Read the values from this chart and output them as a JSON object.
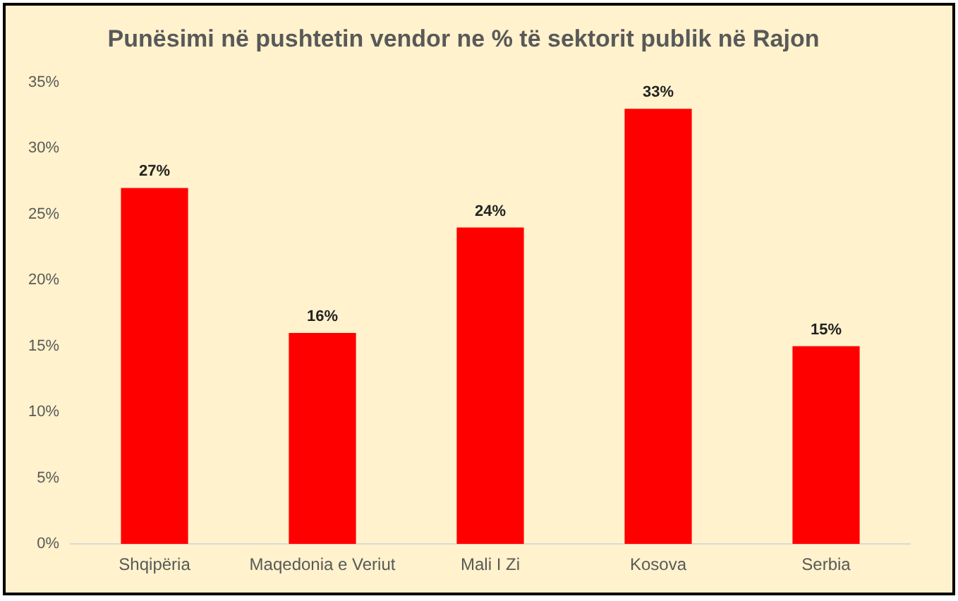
{
  "chart_data": {
    "type": "bar",
    "title": "Punësimi në pushtetin vendor ne % të sektorit publik në Rajon",
    "categories": [
      "Shqipëria",
      "Maqedonia e Veriut",
      "Mali I Zi",
      "Kosova",
      "Serbia"
    ],
    "values": [
      27,
      16,
      24,
      33,
      15
    ],
    "color": "#ff0000",
    "value_labels": [
      "27%",
      "16%",
      "24%",
      "33%",
      "15%"
    ],
    "ylim": [
      0,
      35
    ],
    "yticks": [
      {
        "value": 0,
        "label": "0%"
      },
      {
        "value": 5,
        "label": "5%"
      },
      {
        "value": 10,
        "label": "10%"
      },
      {
        "value": 15,
        "label": "15%"
      },
      {
        "value": 20,
        "label": "20%"
      },
      {
        "value": 25,
        "label": "25%"
      },
      {
        "value": 30,
        "label": "30%"
      },
      {
        "value": 35,
        "label": "35%"
      }
    ],
    "grid": false,
    "legend": false
  }
}
